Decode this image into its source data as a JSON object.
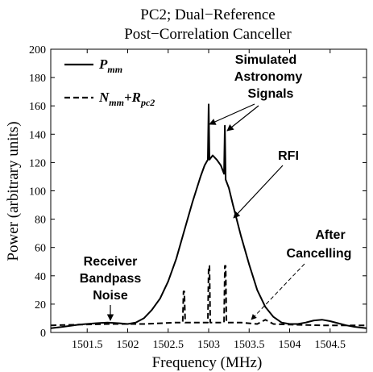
{
  "chart_data": {
    "type": "line",
    "title": "PC2; Dual−Reference",
    "subtitle": "Post−Correlation Canceller",
    "xlabel": "Frequency (MHz)",
    "ylabel": "Power (arbitrary units)",
    "xlim": [
      1501.05,
      1504.95
    ],
    "ylim": [
      0,
      200
    ],
    "xticks": [
      1501.5,
      1502,
      1502.5,
      1503,
      1503.5,
      1504,
      1504.5
    ],
    "xtick_labels": [
      "1501.5",
      "1502",
      "1502.5",
      "1503",
      "1503.5",
      "1504",
      "1504.5"
    ],
    "yticks": [
      0,
      20,
      40,
      60,
      80,
      100,
      120,
      140,
      160,
      180,
      200
    ],
    "ytick_labels": [
      "0",
      "20",
      "40",
      "60",
      "80",
      "100",
      "120",
      "140",
      "160",
      "180",
      "200"
    ],
    "grid": false,
    "legend_position": "top-left",
    "legend": [
      {
        "main": "P",
        "sub": "mm",
        "style": "solid"
      },
      {
        "main": "N",
        "sub": "mm",
        "main2": "+R",
        "sub2": "pc2",
        "style": "dashed"
      }
    ],
    "series": [
      {
        "style": "solid",
        "x": [
          1501.05,
          1501.2,
          1501.4,
          1501.6,
          1501.75,
          1501.9,
          1502.0,
          1502.1,
          1502.2,
          1502.3,
          1502.4,
          1502.5,
          1502.6,
          1502.7,
          1502.8,
          1502.9,
          1502.95,
          1502.99,
          1503.0,
          1503.01,
          1503.05,
          1503.1,
          1503.15,
          1503.19,
          1503.2,
          1503.21,
          1503.25,
          1503.3,
          1503.4,
          1503.5,
          1503.6,
          1503.7,
          1503.8,
          1503.9,
          1504.0,
          1504.1,
          1504.2,
          1504.3,
          1504.4,
          1504.5,
          1504.6,
          1504.7,
          1504.8,
          1504.95
        ],
        "y": [
          3,
          4,
          5.5,
          6.5,
          7,
          6.5,
          6,
          7,
          10,
          16,
          24,
          36,
          52,
          72,
          92,
          110,
          118,
          122,
          161,
          122,
          125,
          122,
          118,
          112,
          146,
          108,
          102,
          90,
          68,
          48,
          30,
          18,
          11,
          7,
          6,
          6,
          7,
          8.5,
          9,
          8,
          6.5,
          5,
          4,
          3
        ]
      },
      {
        "style": "dashed",
        "x": [
          1501.05,
          1501.4,
          1501.8,
          1502.2,
          1502.6,
          1502.68,
          1502.69,
          1502.7,
          1502.71,
          1502.72,
          1502.9,
          1502.99,
          1503.0,
          1503.01,
          1503.02,
          1503.19,
          1503.2,
          1503.21,
          1503.22,
          1503.4,
          1503.6,
          1503.7,
          1503.8,
          1504.0,
          1504.4,
          1504.95
        ],
        "y": [
          5,
          5.5,
          6,
          6,
          7,
          7,
          29,
          29,
          7,
          7,
          7,
          7,
          47,
          47,
          7,
          7,
          47,
          47,
          7,
          7,
          6,
          9,
          6,
          5.5,
          5,
          5
        ]
      }
    ],
    "annotations": [
      {
        "lines": [
          "Simulated",
          "Astronomy",
          "Signals"
        ],
        "points_to": [
          [
            1503.0,
            145
          ],
          [
            1503.2,
            140
          ]
        ]
      },
      {
        "lines": [
          "RFI"
        ],
        "points_to": [
          [
            1503.55,
            78
          ]
        ]
      },
      {
        "lines": [
          "Receiver",
          "Bandpass",
          "Noise"
        ],
        "points_to": [
          [
            1501.8,
            8
          ]
        ]
      },
      {
        "lines": [
          "After",
          "Cancelling"
        ],
        "points_to": [
          [
            1503.7,
            10
          ]
        ]
      }
    ]
  }
}
